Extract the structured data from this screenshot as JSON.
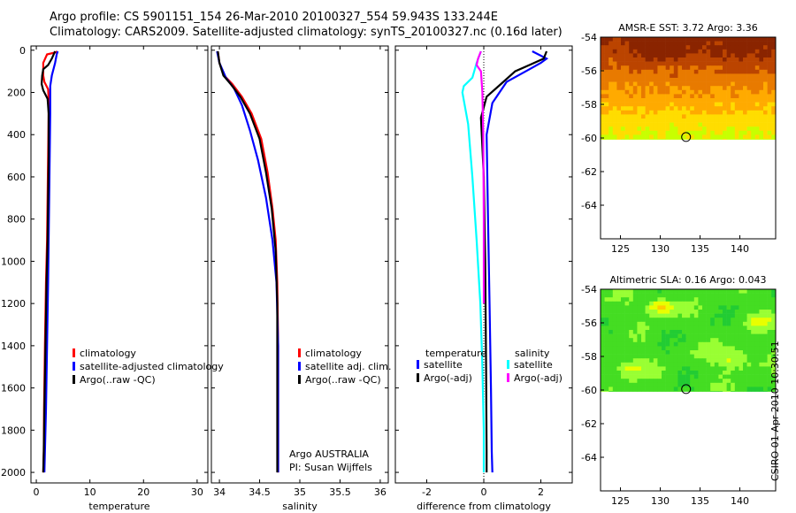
{
  "figure": {
    "title_line1": "Argo profile: CS 5901151_154 26-Mar-2010 20100327_554 59.943S 133.244E",
    "title_line2": "Climatology: CARS2009. Satellite-adjusted climatology: synTS_20100327.nc (0.16d later)",
    "stamp": "CSIRO 01-Apr-2010 10:30:51"
  },
  "colors": {
    "climatology": "#ff0000",
    "satellite": "#0000ff",
    "argo": "#000000",
    "cyan": "#00ffff",
    "magenta": "#ff00ff"
  },
  "chart_data": [
    {
      "type": "line",
      "name": "temperature",
      "xlabel": "temperature",
      "xlim": [
        -1,
        32
      ],
      "ylim": [
        2050,
        -20
      ],
      "xticks": [
        0,
        10,
        20,
        30
      ],
      "yticks": [
        0,
        200,
        400,
        600,
        800,
        1000,
        1200,
        1400,
        1600,
        1800,
        2000
      ],
      "legend": [
        "climatology",
        "satellite-adjusted climatology",
        "Argo(..raw -QC)"
      ],
      "series": [
        {
          "name": "climatology",
          "color": "#ff0000",
          "x": [
            3.9,
            3.6,
            2.0,
            1.3,
            1.3,
            1.5,
            2.2,
            2.3,
            2.3,
            2.2,
            2.1,
            2.0,
            1.8,
            1.6,
            1.45,
            1.4,
            1.3
          ],
          "y": [
            5,
            10,
            20,
            60,
            120,
            150,
            185,
            230,
            300,
            500,
            700,
            900,
            1100,
            1400,
            1700,
            1900,
            2000
          ]
        },
        {
          "name": "satellite",
          "color": "#0000ff",
          "x": [
            4.0,
            3.8,
            3.5,
            2.9,
            2.6,
            2.6,
            2.6,
            2.5,
            2.4,
            2.3,
            2.2,
            2.0,
            1.8,
            1.6,
            1.5
          ],
          "y": [
            5,
            20,
            60,
            120,
            170,
            230,
            300,
            500,
            700,
            900,
            1100,
            1400,
            1700,
            1900,
            2000
          ]
        },
        {
          "name": "argo",
          "color": "#000000",
          "x": [
            3.5,
            3.4,
            2.9,
            2.2,
            1.3,
            1.1,
            1.0,
            1.3,
            2.1,
            2.3,
            2.3,
            2.2,
            2.1,
            1.9,
            1.7,
            1.5,
            1.4,
            1.3
          ],
          "y": [
            5,
            10,
            40,
            70,
            90,
            120,
            160,
            190,
            230,
            300,
            500,
            700,
            900,
            1100,
            1400,
            1700,
            1900,
            2000
          ]
        }
      ]
    },
    {
      "type": "line",
      "name": "salinity",
      "xlabel": "salinity",
      "xlim": [
        33.9,
        36.1
      ],
      "ylim": [
        2050,
        -20
      ],
      "xticks": [
        34,
        34.5,
        35,
        35.5,
        36
      ],
      "legend": [
        "climatology",
        "satellite adj. clim.",
        "Argo(..raw -QC)"
      ],
      "annotations": [
        "Argo AUSTRALIA",
        "PI: Susan Wijffels"
      ],
      "series": [
        {
          "name": "climatology",
          "color": "#ff0000",
          "x": [
            33.98,
            34.0,
            34.06,
            34.16,
            34.28,
            34.4,
            34.52,
            34.6,
            34.66,
            34.7,
            34.72,
            34.73,
            34.73
          ],
          "y": [
            5,
            60,
            120,
            160,
            220,
            300,
            420,
            580,
            750,
            900,
            1100,
            1400,
            2000
          ]
        },
        {
          "name": "satellite",
          "color": "#0000ff",
          "x": [
            33.97,
            34.0,
            34.08,
            34.18,
            34.28,
            34.38,
            34.48,
            34.58,
            34.66,
            34.71,
            34.73,
            34.73
          ],
          "y": [
            5,
            60,
            130,
            180,
            260,
            380,
            520,
            700,
            900,
            1100,
            1400,
            2000
          ]
        },
        {
          "name": "argo",
          "color": "#000000",
          "x": [
            33.98,
            34.0,
            34.05,
            34.14,
            34.26,
            34.38,
            34.5,
            34.58,
            34.65,
            34.7,
            34.72,
            34.72
          ],
          "y": [
            5,
            60,
            120,
            160,
            220,
            300,
            420,
            580,
            750,
            950,
            1200,
            2000
          ]
        }
      ]
    },
    {
      "type": "line",
      "name": "difference",
      "xlabel": "difference from climatology",
      "xlim": [
        -3.1,
        3.1
      ],
      "ylim": [
        2050,
        -20
      ],
      "xticks": [
        -2,
        0,
        2
      ],
      "legend_temperature": {
        "header": "temperature",
        "items": [
          "satellite",
          "Argo(-adj)"
        ]
      },
      "legend_salinity": {
        "header": "salinity",
        "items": [
          "satellite",
          "Argo(-adj)"
        ]
      },
      "series": [
        {
          "name": "temperature satellite",
          "color": "#0000ff",
          "x": [
            1.7,
            2.2,
            2.0,
            1.6,
            0.8,
            0.3,
            0.1,
            0.15,
            0.2,
            0.25,
            0.28,
            0.3
          ],
          "y": [
            5,
            40,
            60,
            90,
            150,
            250,
            400,
            800,
            1200,
            1600,
            1900,
            2000
          ]
        },
        {
          "name": "temperature argo",
          "color": "#000000",
          "x": [
            2.2,
            2.1,
            1.6,
            1.1,
            0.6,
            0.1,
            -0.1,
            0.0,
            0.05,
            0.08,
            0.1,
            0.1
          ],
          "y": [
            5,
            40,
            70,
            100,
            160,
            220,
            320,
            600,
            1000,
            1500,
            1900,
            2000
          ]
        },
        {
          "name": "salinity satellite",
          "color": "#00ffff",
          "x": [
            -0.1,
            -0.25,
            -0.4,
            -0.7,
            -0.75,
            -0.55,
            -0.4,
            -0.25,
            -0.12,
            -0.05,
            0.0,
            0.0
          ],
          "y": [
            5,
            60,
            130,
            170,
            200,
            350,
            600,
            900,
            1200,
            1500,
            1800,
            2000
          ]
        },
        {
          "name": "salinity argo",
          "color": "#ff00ff",
          "x": [
            -0.1,
            -0.2,
            -0.25,
            -0.1,
            -0.05,
            -0.02,
            0.0,
            0.0
          ],
          "y": [
            5,
            40,
            70,
            100,
            200,
            400,
            800,
            1200
          ]
        }
      ]
    },
    {
      "type": "heatmap",
      "name": "sst_map",
      "title": "AMSR-E SST: 3.72 Argo: 3.36",
      "xlim": [
        122.5,
        144.5
      ],
      "ylim": [
        -66,
        -54
      ],
      "xticks": [
        125,
        130,
        135,
        140
      ],
      "yticks": [
        -54,
        -56,
        -58,
        -60,
        -62,
        -64
      ],
      "data_extent_lat": [
        -60.1,
        -54
      ],
      "float_position": {
        "lon": 133.244,
        "lat": -59.943
      },
      "palette": [
        "#8a2400",
        "#bb4400",
        "#e87a00",
        "#ffaa00",
        "#ffdd00",
        "#c8ff00"
      ]
    },
    {
      "type": "heatmap",
      "name": "sla_map",
      "title": "Altimetric SLA: 0.16 Argo: 0.043",
      "xlim": [
        122.5,
        144.5
      ],
      "ylim": [
        -66,
        -54
      ],
      "xticks": [
        125,
        130,
        135,
        140
      ],
      "yticks": [
        -54,
        -56,
        -58,
        -60,
        -62,
        -64
      ],
      "data_extent_lat": [
        -60.1,
        -54
      ],
      "float_position": {
        "lon": 133.244,
        "lat": -59.943
      },
      "palette": [
        "#22cc33",
        "#44dd22",
        "#99ff33",
        "#e8ff00",
        "#ffcc00",
        "#ff9900"
      ]
    }
  ]
}
